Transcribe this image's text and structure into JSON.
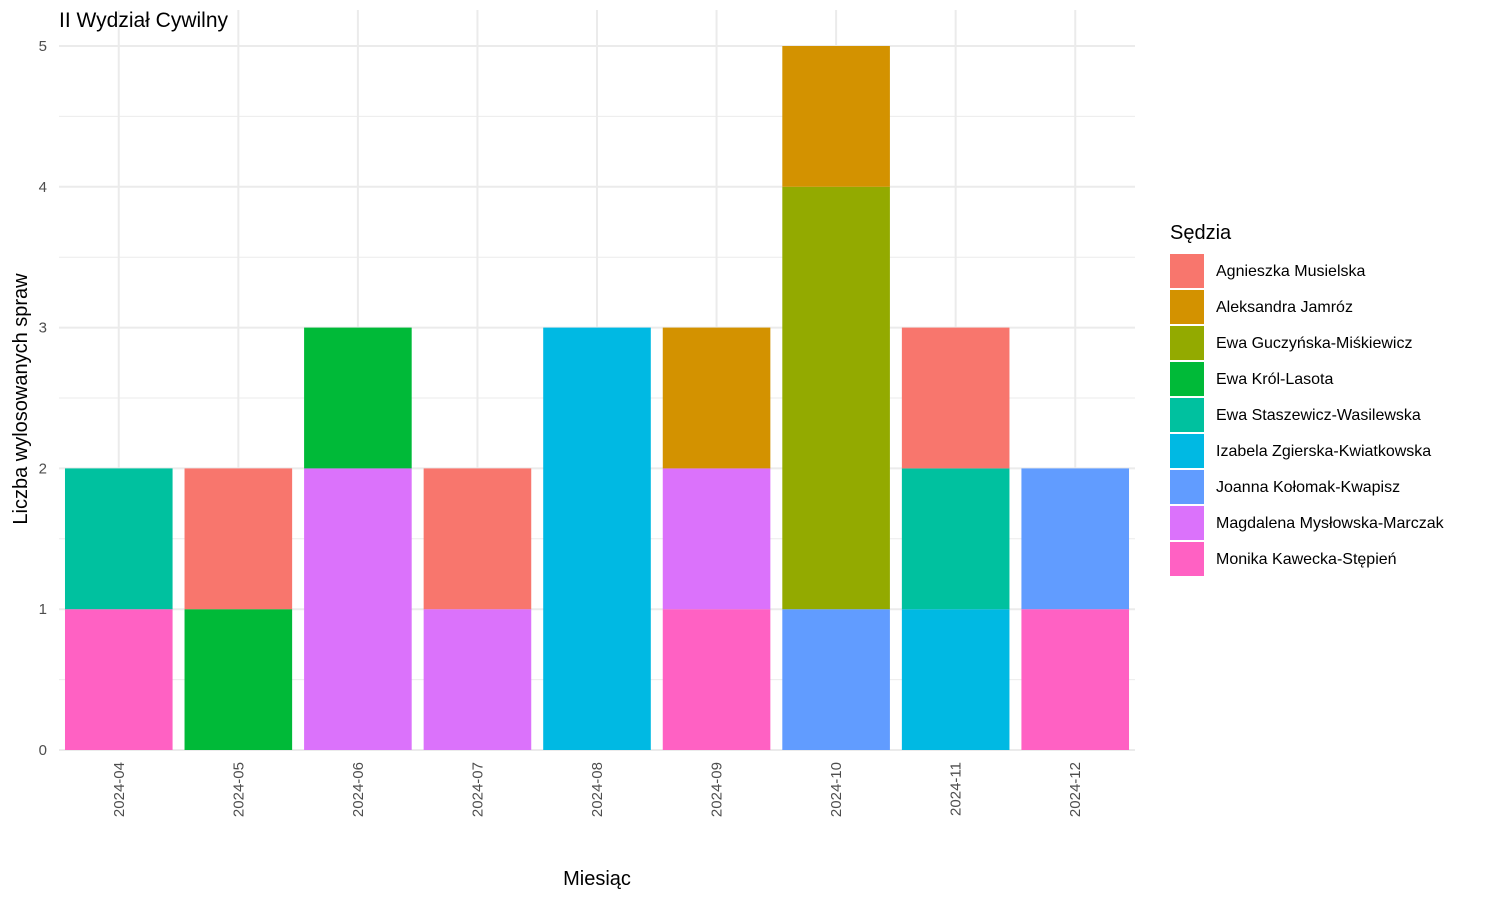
{
  "chart_data": {
    "type": "bar",
    "stacked": true,
    "title": "II Wydział Cywilny",
    "xlabel": "Miesiąc",
    "ylabel": "Liczba wylosowanych spraw",
    "ylim": [
      0,
      5
    ],
    "yticks": [
      "0",
      "1",
      "2",
      "3",
      "4",
      "5"
    ],
    "grid": true,
    "legend_position": "right",
    "legend_title": "Sędzia",
    "categories": [
      "2024-04",
      "2024-05",
      "2024-06",
      "2024-07",
      "2024-08",
      "2024-09",
      "2024-10",
      "2024-11",
      "2024-12"
    ],
    "series": [
      {
        "name": "Agnieszka Musielska",
        "color": "#F8766D",
        "values": [
          0,
          1,
          0,
          1,
          0,
          0,
          0,
          1,
          0
        ]
      },
      {
        "name": "Aleksandra Jamróz",
        "color": "#D39200",
        "values": [
          0,
          0,
          0,
          0,
          0,
          1,
          1,
          0,
          0
        ]
      },
      {
        "name": "Ewa Guczyńska-Miśkiewicz",
        "color": "#93AA00",
        "values": [
          0,
          0,
          0,
          0,
          0,
          0,
          3,
          0,
          0
        ]
      },
      {
        "name": "Ewa Król-Lasota",
        "color": "#00BA38",
        "values": [
          0,
          1,
          1,
          0,
          0,
          0,
          0,
          0,
          0
        ]
      },
      {
        "name": "Ewa Staszewicz-Wasilewska",
        "color": "#00C19F",
        "values": [
          1,
          0,
          0,
          0,
          0,
          0,
          0,
          1,
          0
        ]
      },
      {
        "name": "Izabela Zgierska-Kwiatkowska",
        "color": "#00B9E3",
        "values": [
          0,
          0,
          0,
          0,
          3,
          0,
          0,
          1,
          0
        ]
      },
      {
        "name": "Joanna Kołomak-Kwapisz",
        "color": "#619CFF",
        "values": [
          0,
          0,
          0,
          0,
          0,
          0,
          1,
          0,
          1
        ]
      },
      {
        "name": "Magdalena Mysłowska-Marczak",
        "color": "#DB72FB",
        "values": [
          0,
          0,
          2,
          1,
          0,
          1,
          0,
          0,
          0
        ]
      },
      {
        "name": "Monika Kawecka-Stępień",
        "color": "#FF61C3",
        "values": [
          1,
          0,
          0,
          0,
          0,
          1,
          0,
          0,
          1
        ]
      }
    ]
  }
}
